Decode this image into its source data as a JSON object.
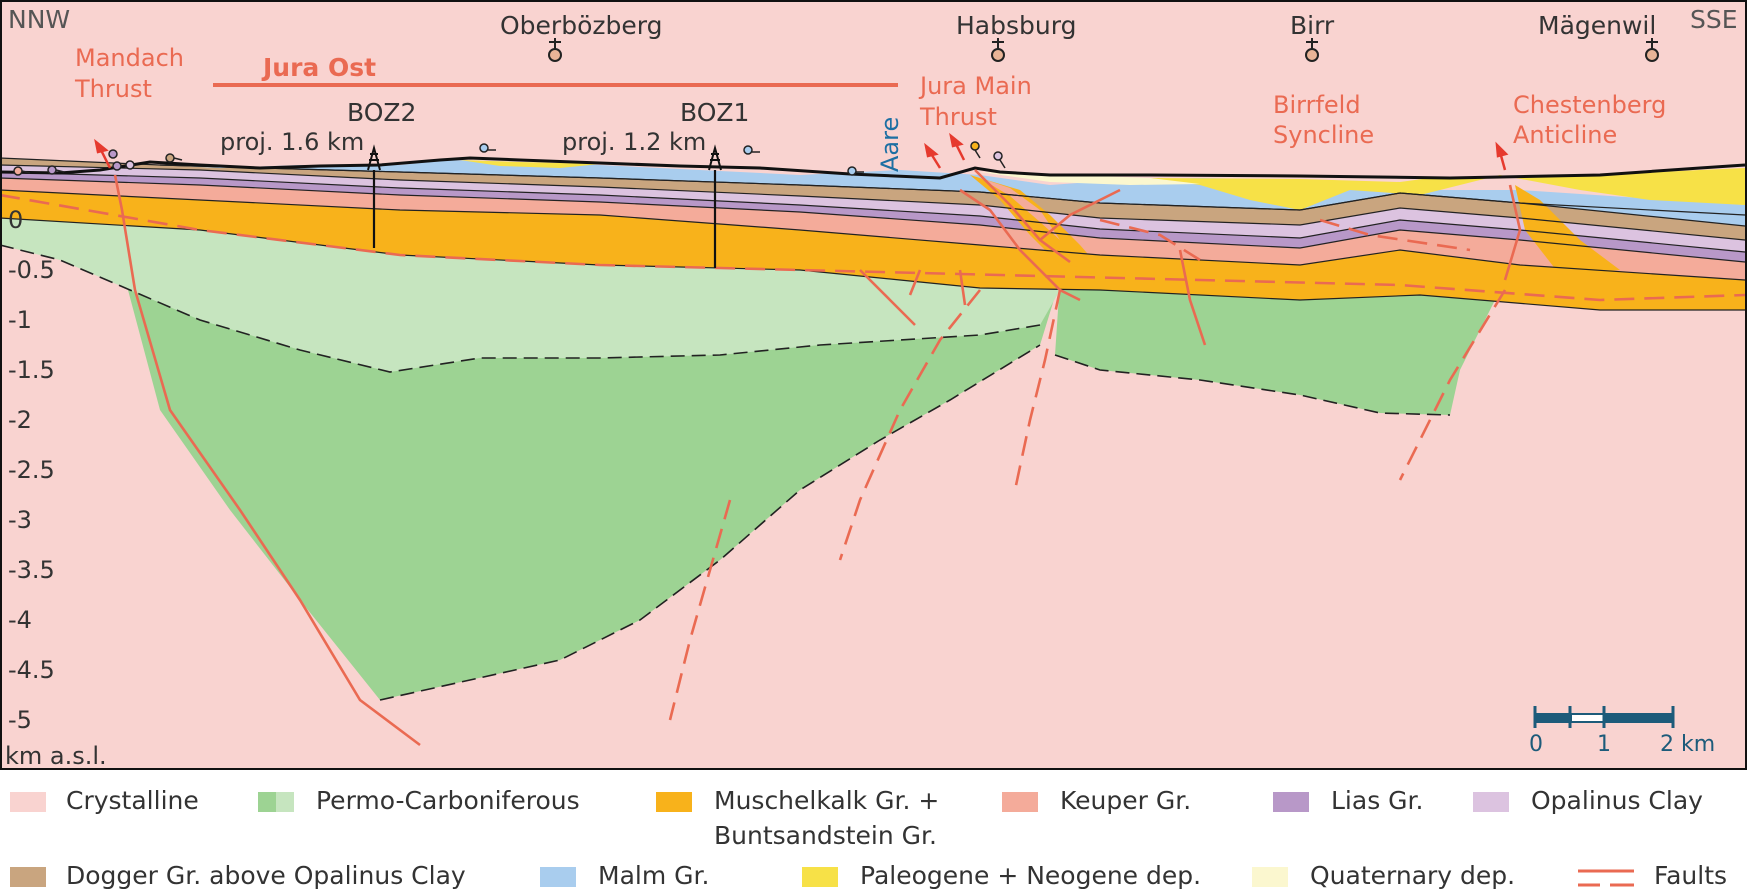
{
  "section": {
    "direction_left": "NNW",
    "direction_right": "SSE",
    "unit_label": "km a.s.l.",
    "y_ticks": [
      "0",
      "-0.5",
      "-1",
      "-1.5",
      "-2",
      "-2.5",
      "-3",
      "-3.5",
      "-4",
      "-4.5",
      "-5"
    ],
    "places": [
      "Oberbözberg",
      "Habsburg",
      "Birr",
      "Mägenwil"
    ],
    "region_label": "Jura Ost",
    "river": "Aare",
    "structures": [
      {
        "line1": "Mandach",
        "line2": "Thrust"
      },
      {
        "line1": "Jura Main",
        "line2": "Thrust"
      },
      {
        "line1": "Birrfeld",
        "line2": "Syncline"
      },
      {
        "line1": "Chestenberg",
        "line2": "Anticline"
      }
    ],
    "boreholes": [
      {
        "name": "BOZ2",
        "proj": "proj. 1.6 km"
      },
      {
        "name": "BOZ1",
        "proj": "proj. 1.2 km"
      }
    ],
    "scale": {
      "t0": "0",
      "t1": "1",
      "t2": "2 km"
    }
  },
  "legend": {
    "crystalline": "Crystalline",
    "permo": "Permo-Carboniferous",
    "muschelkalk_1": "Muschelkalk Gr. +",
    "muschelkalk_2": "Buntsandstein Gr.",
    "keuper": "Keuper Gr.",
    "lias": "Lias Gr.",
    "opalinus": "Opalinus Clay",
    "dogger": "Dogger Gr. above Opalinus Clay",
    "malm": "Malm Gr.",
    "paleogene": "Paleogene + Neogene dep.",
    "quaternary": "Quaternary dep.",
    "faults": "Faults"
  },
  "colors": {
    "crystalline": "#f9d3d0",
    "permo_dark": "#9dd393",
    "permo_light": "#c6e5bf",
    "muschelkalk": "#f8b21b",
    "keuper": "#f4ab9a",
    "lias": "#b898c8",
    "opalinus": "#dcc3e0",
    "dogger": "#c9a57f",
    "malm": "#a9cdee",
    "paleogene": "#f7e147",
    "quaternary": "#fbf7cf",
    "fault": "#ea6a52",
    "river": "#1d6fa3",
    "scale": "#1d5b7a"
  }
}
